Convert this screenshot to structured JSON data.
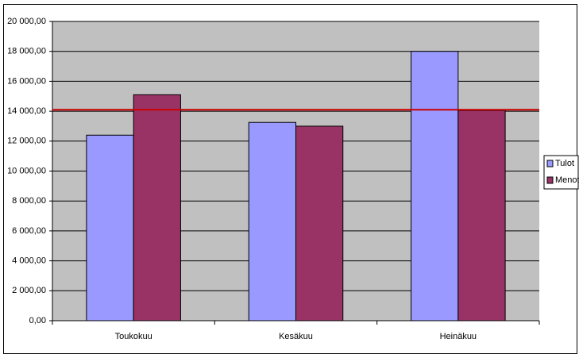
{
  "chart_data": {
    "type": "bar",
    "categories": [
      "Toukokuu",
      "Kesäkuu",
      "Heinäkuu"
    ],
    "series": [
      {
        "name": "Tulot",
        "color": "#9999ff",
        "values": [
          12400,
          13250,
          18000
        ]
      },
      {
        "name": "Menot",
        "color": "#993366",
        "values": [
          15100,
          13000,
          14050
        ]
      }
    ],
    "ylim": [
      0,
      20000
    ],
    "yticks": [
      {
        "value": 0,
        "label": "0,00"
      },
      {
        "value": 2000,
        "label": "2 000,00"
      },
      {
        "value": 4000,
        "label": "4 000,00"
      },
      {
        "value": 6000,
        "label": "6 000,00"
      },
      {
        "value": 8000,
        "label": "8 000,00"
      },
      {
        "value": 10000,
        "label": "10 000,00"
      },
      {
        "value": 12000,
        "label": "12 000,00"
      },
      {
        "value": 14000,
        "label": "14 000,00"
      },
      {
        "value": 16000,
        "label": "16 000,00"
      },
      {
        "value": 18000,
        "label": "18 000,00"
      },
      {
        "value": 20000,
        "label": "20 000,00"
      }
    ],
    "grid": true,
    "plot_background": "#c0c0c0",
    "reference_line": {
      "value": 14100,
      "color": "#cc0000"
    },
    "legend": "right"
  }
}
